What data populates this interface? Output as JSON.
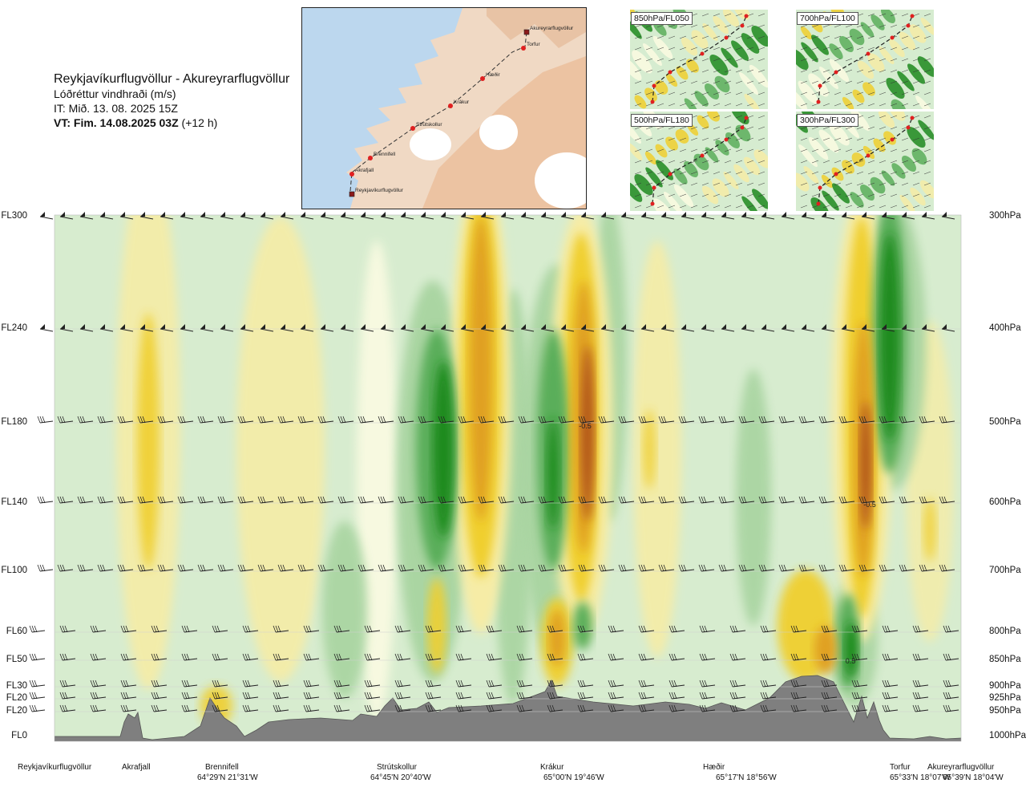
{
  "title": {
    "route": "Reykjavíkurflugvöllur - Akureyrarflugvöllur",
    "variable": "Lóðréttur vindhraði (m/s)",
    "it": "IT: Mið. 13. 08. 2025 15Z",
    "vt_bold": "VT: Fim. 14.08.2025 03Z",
    "vt_offset": " (+12 h)"
  },
  "route_map": {
    "points": [
      {
        "name": "Reykjavíkurflugvöllur"
      },
      {
        "name": "Akrafjall"
      },
      {
        "name": "Brennifell"
      },
      {
        "name": "Strútskollur"
      },
      {
        "name": "Krákur"
      },
      {
        "name": "Hæðir"
      },
      {
        "name": "Torfur"
      },
      {
        "name": "Akureyrarflugvöllur"
      }
    ]
  },
  "insets": [
    {
      "label": "850hPa/FL050"
    },
    {
      "label": "700hPa/FL100"
    },
    {
      "label": "500hPa/FL180"
    },
    {
      "label": "300hPa/FL300"
    }
  ],
  "flight_levels": [
    {
      "fl": "FL300",
      "hpa": "300hPa",
      "p": 300
    },
    {
      "fl": "FL240",
      "hpa": "400hPa",
      "p": 400
    },
    {
      "fl": "FL180",
      "hpa": "500hPa",
      "p": 500
    },
    {
      "fl": "FL140",
      "hpa": "600hPa",
      "p": 600
    },
    {
      "fl": "FL100",
      "hpa": "700hPa",
      "p": 700
    },
    {
      "fl": "FL60",
      "hpa": "800hPa",
      "p": 800
    },
    {
      "fl": "FL50",
      "hpa": "850hPa",
      "p": 850
    },
    {
      "fl": "FL30",
      "hpa": "900hPa",
      "p": 900
    },
    {
      "fl": "FL20",
      "hpa": "925hPa",
      "p": 925
    },
    {
      "fl": "FL20",
      "hpa": "950hPa",
      "p": 950
    },
    {
      "fl": "FL0",
      "hpa": "1000hPa",
      "p": 1000
    }
  ],
  "waypoints": [
    {
      "name": "Reykjavíkurflugvöllur",
      "coord": ""
    },
    {
      "name": "Akrafjall",
      "coord": ""
    },
    {
      "name": "Brennifell",
      "coord": "64°29'N 21°31'W"
    },
    {
      "name": "Strútskollur",
      "coord": "64°45'N 20°40'W"
    },
    {
      "name": "Krákur",
      "coord": "65°00'N 19°46'W"
    },
    {
      "name": "Hæðir",
      "coord": "65°17'N 18°56'W"
    },
    {
      "name": "Torfur",
      "coord": "65°33'N 18°07'W"
    },
    {
      "name": "Akureyrarflugvöllur",
      "coord": "65°39'N 18°04'W"
    }
  ],
  "contour_labels": [
    "-0.5",
    "-0.5",
    "0.5"
  ],
  "colors": {
    "updraft_strong": "#1f8a1f",
    "updraft_mid": "#5aae5a",
    "updraft_weak": "#a8d4a0",
    "neutral": "#d7eccf",
    "near_zero": "#fbfbe2",
    "downdraft_weak": "#f6eca6",
    "downdraft_mid": "#f0cf2e",
    "downdraft_strong": "#e0a020",
    "downdraft_max": "#b0521a",
    "terrain": "#7f7f7f"
  },
  "chart_data": {
    "type": "heatmap",
    "xlabel": "",
    "ylabel": "",
    "y_axis": "pressure (hPa)",
    "ylim": [
      1000,
      300
    ],
    "x_categories": [
      "Reykjavíkurflugvöllur",
      "Akrafjall",
      "Brennifell",
      "Strútskollur",
      "Krákur",
      "Hæðir",
      "Torfur",
      "Akureyrarflugvöllur"
    ],
    "color_scale": "green = upward, yellow/brown = downward vertical wind speed",
    "wind_barbs_at_hpa": [
      300,
      400,
      500,
      600,
      700,
      800,
      850,
      900,
      925,
      950
    ]
  }
}
